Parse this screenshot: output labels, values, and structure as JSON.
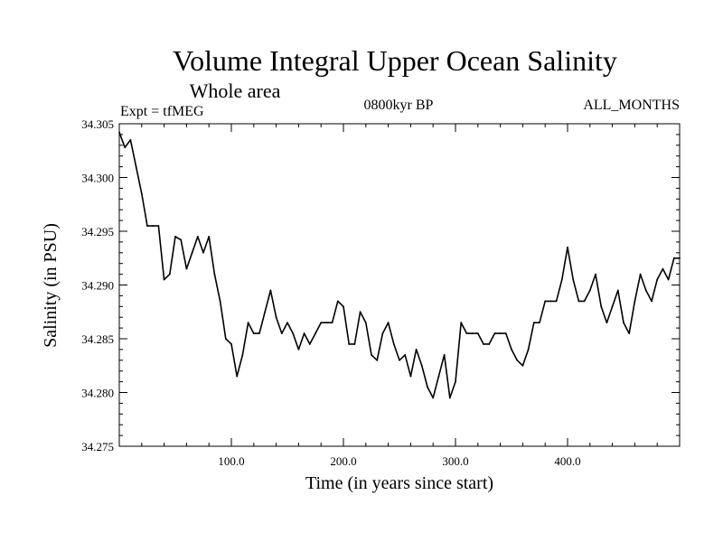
{
  "chart_data": {
    "type": "line",
    "title": "Volume Integral Upper Ocean Salinity",
    "subtitle": "Whole area",
    "left_label": "Expt = tfMEG",
    "center_label": "0800kyr BP",
    "right_label": "ALL_MONTHS",
    "xlabel": "Time (in years since start)",
    "ylabel": "Salinity (in PSU)",
    "xlim": [
      0,
      500
    ],
    "ylim": [
      34.275,
      34.305
    ],
    "x_ticks": [
      100,
      200,
      300,
      400
    ],
    "x_tick_labels": [
      "100.0",
      "200.0",
      "300.0",
      "400.0"
    ],
    "y_ticks": [
      34.275,
      34.28,
      34.285,
      34.29,
      34.295,
      34.3,
      34.305
    ],
    "y_tick_labels": [
      "34.275",
      "34.280",
      "34.285",
      "34.290",
      "34.295",
      "34.300",
      "34.305"
    ],
    "series": [
      {
        "name": "Salinity",
        "color": "#000000",
        "x": [
          0,
          5,
          10,
          15,
          20,
          25,
          30,
          35,
          40,
          45,
          50,
          55,
          60,
          65,
          70,
          75,
          80,
          85,
          90,
          95,
          100,
          105,
          110,
          115,
          120,
          125,
          130,
          135,
          140,
          145,
          150,
          155,
          160,
          165,
          170,
          175,
          180,
          185,
          190,
          195,
          200,
          205,
          210,
          215,
          220,
          225,
          230,
          235,
          240,
          245,
          250,
          255,
          260,
          265,
          270,
          275,
          280,
          285,
          290,
          295,
          300,
          305,
          310,
          315,
          320,
          325,
          330,
          335,
          340,
          345,
          350,
          355,
          360,
          365,
          370,
          375,
          380,
          385,
          390,
          395,
          400,
          405,
          410,
          415,
          420,
          425,
          430,
          435,
          440,
          445,
          450,
          455,
          460,
          465,
          470,
          475,
          480,
          485,
          490,
          495,
          500
        ],
        "values": [
          34.3042,
          34.3028,
          34.3035,
          34.301,
          34.2985,
          34.2955,
          34.2955,
          34.2955,
          34.2905,
          34.291,
          34.2945,
          34.2942,
          34.2915,
          34.293,
          34.2945,
          34.293,
          34.2945,
          34.291,
          34.2885,
          34.285,
          34.2845,
          34.2815,
          34.2835,
          34.2865,
          34.2855,
          34.2855,
          34.2875,
          34.2895,
          34.287,
          34.2855,
          34.2865,
          34.2855,
          34.284,
          34.2855,
          34.2845,
          34.2855,
          34.2865,
          34.2865,
          34.2865,
          34.2885,
          34.288,
          34.2845,
          34.2845,
          34.2875,
          34.2865,
          34.2835,
          34.283,
          34.2855,
          34.2865,
          34.2845,
          34.283,
          34.2835,
          34.2815,
          34.284,
          34.2825,
          34.2805,
          34.2795,
          34.2815,
          34.2835,
          34.2795,
          34.281,
          34.2865,
          34.2855,
          34.2855,
          34.2855,
          34.2845,
          34.2845,
          34.2855,
          34.2855,
          34.2855,
          34.284,
          34.283,
          34.2825,
          34.284,
          34.2865,
          34.2865,
          34.2885,
          34.2885,
          34.2885,
          34.2905,
          34.2935,
          34.2905,
          34.2885,
          34.2885,
          34.2895,
          34.291,
          34.288,
          34.2865,
          34.288,
          34.2895,
          34.2865,
          34.2855,
          34.2885,
          34.291,
          34.2895,
          34.2885,
          34.2905,
          34.2915,
          34.2905,
          34.2925,
          34.2925
        ]
      }
    ]
  }
}
